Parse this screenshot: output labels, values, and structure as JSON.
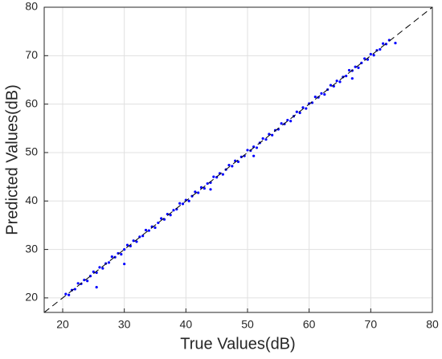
{
  "chart_data": {
    "type": "scatter",
    "x_label": "True Values(dB)",
    "y_label": "Predicted Values(dB)",
    "x": [
      20.5,
      21,
      21.5,
      22,
      22.5,
      23,
      23.5,
      24,
      24.5,
      25,
      25.5,
      26,
      26.5,
      27,
      27.5,
      28,
      28.5,
      29,
      29.5,
      30,
      30.5,
      31,
      31.5,
      32,
      32.5,
      33,
      33.5,
      34,
      34.5,
      35,
      35.5,
      36,
      36.5,
      37,
      37.5,
      38,
      38.5,
      39,
      39.5,
      40,
      40.5,
      41,
      41.5,
      42,
      42.5,
      43,
      43.5,
      44,
      44.5,
      45,
      45.5,
      46,
      46.5,
      47,
      47.5,
      48,
      48.5,
      49,
      49.5,
      50,
      50.5,
      51,
      51.5,
      52,
      52.5,
      53,
      53.5,
      54,
      54.5,
      55,
      55.5,
      56,
      56.5,
      57,
      57.5,
      58,
      58.5,
      59,
      59.5,
      60,
      60.5,
      61,
      61.5,
      62,
      62.5,
      63,
      63.5,
      64,
      64.5,
      65,
      65.5,
      66,
      66.5,
      67,
      67.5,
      68,
      68.5,
      69,
      69.5,
      70,
      70.5,
      71,
      71.5,
      72,
      72.5,
      73,
      25.5,
      30,
      44,
      51,
      67,
      74
    ],
    "y": [
      20.8,
      20.6,
      21.6,
      21.8,
      23.0,
      22.9,
      23.7,
      23.5,
      24.5,
      25.4,
      25.2,
      26.3,
      26.1,
      27.1,
      27.3,
      28.5,
      28.4,
      29.2,
      29.0,
      30,
      30.9,
      30.7,
      31.8,
      31.6,
      32.6,
      32.8,
      34.0,
      33.9,
      34.7,
      34.5,
      35.5,
      36.4,
      36.2,
      37.3,
      37.1,
      38.1,
      38.3,
      39.5,
      39.4,
      40.2,
      40.0,
      41,
      41.9,
      41.7,
      42.8,
      42.6,
      43.6,
      43.8,
      45.0,
      44.9,
      45.7,
      45.5,
      46.5,
      47.4,
      47.2,
      48.3,
      48.1,
      49.1,
      49.3,
      50.5,
      50.4,
      51.2,
      51.0,
      52,
      52.9,
      52.7,
      53.8,
      53.6,
      54.6,
      54.8,
      56.0,
      55.9,
      56.7,
      56.5,
      57.5,
      58.4,
      58.2,
      59.3,
      59.1,
      60.1,
      60.3,
      61.5,
      61.4,
      62.2,
      62.0,
      63,
      63.9,
      63.7,
      64.8,
      64.6,
      65.6,
      65.8,
      67.0,
      66.9,
      67.7,
      67.5,
      68.5,
      69.4,
      69.2,
      70.3,
      70.1,
      71.1,
      71.3,
      72.5,
      72.4,
      73.2,
      22.2,
      27,
      42.4,
      49.3,
      65.3,
      72.6
    ],
    "color": "#0000ff",
    "xlim": [
      17,
      80
    ],
    "ylim": [
      17,
      80
    ],
    "xticks": [
      20,
      30,
      40,
      50,
      60,
      70,
      80
    ],
    "yticks": [
      20,
      30,
      40,
      50,
      60,
      70,
      80
    ],
    "grid": true,
    "reference_line": true
  }
}
